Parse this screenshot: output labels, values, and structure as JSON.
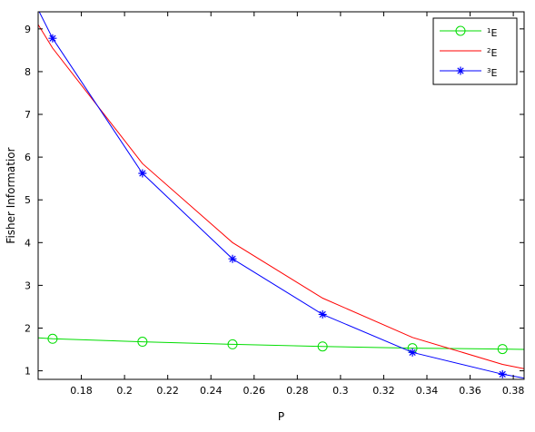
{
  "chart_data": {
    "type": "line",
    "xlabel": "P",
    "ylabel": "Fisher Informatior",
    "xlim": [
      0.16,
      0.385
    ],
    "ylim": [
      0.8,
      9.4
    ],
    "xticks": [
      0.18,
      0.2,
      0.22,
      0.24,
      0.26,
      0.28,
      0.3,
      0.32,
      0.34,
      0.36,
      0.38
    ],
    "xtick_labels": [
      "0.18",
      "0.2",
      "0.22",
      "0.24",
      "0.26",
      "0.28",
      "0.3",
      "0.32",
      "0.34",
      "0.36",
      "0.38"
    ],
    "yticks": [
      1,
      2,
      3,
      4,
      5,
      6,
      7,
      8,
      9
    ],
    "ytick_labels": [
      "1",
      "2",
      "3",
      "4",
      "5",
      "6",
      "7",
      "8",
      "9"
    ],
    "grid": false,
    "legend_position": "top-right",
    "series": [
      {
        "name": "1E",
        "legend_sup": "1",
        "legend_base": "E",
        "color": "#00dd00",
        "marker": "circle",
        "x": [
          0.1667,
          0.2083,
          0.25,
          0.2917,
          0.3333,
          0.375
        ],
        "y": [
          1.75,
          1.68,
          1.62,
          1.57,
          1.53,
          1.51
        ],
        "line_x": [
          0.16,
          0.1667,
          0.2083,
          0.25,
          0.2917,
          0.3333,
          0.375,
          0.385
        ],
        "line_y": [
          1.77,
          1.75,
          1.68,
          1.62,
          1.57,
          1.53,
          1.51,
          1.5
        ]
      },
      {
        "name": "2E",
        "legend_sup": "2",
        "legend_base": "E",
        "color": "#ff0000",
        "marker": "none",
        "x": [
          0.16,
          0.1667,
          0.2083,
          0.25,
          0.2917,
          0.3333,
          0.375,
          0.385
        ],
        "y": [
          9.1,
          8.55,
          5.85,
          4.0,
          2.7,
          1.78,
          1.15,
          1.05
        ]
      },
      {
        "name": "3E",
        "legend_sup": "3",
        "legend_base": "E",
        "color": "#0000ff",
        "marker": "star",
        "x": [
          0.1667,
          0.2083,
          0.25,
          0.2917,
          0.3333,
          0.375
        ],
        "y": [
          8.78,
          5.62,
          3.62,
          2.32,
          1.43,
          0.92
        ],
        "line_x": [
          0.16,
          0.1667,
          0.2083,
          0.25,
          0.2917,
          0.3333,
          0.375,
          0.385
        ],
        "line_y": [
          9.45,
          8.78,
          5.62,
          3.62,
          2.32,
          1.43,
          0.92,
          0.83
        ]
      }
    ]
  }
}
